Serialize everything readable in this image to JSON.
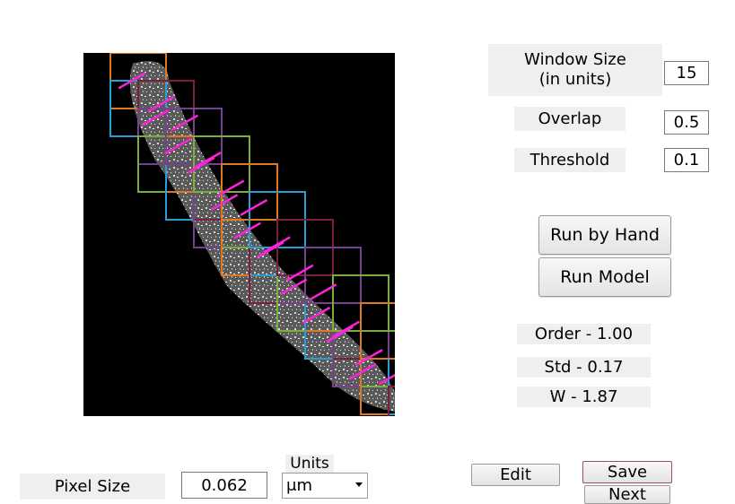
{
  "params": {
    "window_size_label": "Window Size\n(in units)",
    "window_size_value": "15",
    "overlap_label": "Overlap",
    "overlap_value": "0.5",
    "threshold_label": "Threshold",
    "threshold_value": "0.1"
  },
  "buttons": {
    "run_by_hand": "Run by Hand",
    "run_model": "Run Model",
    "edit": "Edit",
    "save": "Save",
    "next": "Next"
  },
  "results": {
    "order": "Order - 1.00",
    "std": "Std - 0.17",
    "w": "W - 1.87"
  },
  "pixel_size": {
    "label": "Pixel Size",
    "value": "0.062"
  },
  "units": {
    "label": "Units",
    "selected": "μm"
  },
  "colors": {
    "orientation_line": "#ff22dd",
    "window_palette": [
      "#e07820",
      "#2a9fd6",
      "#7a1f3d",
      "#7a3f8f",
      "#7ab03a"
    ]
  }
}
